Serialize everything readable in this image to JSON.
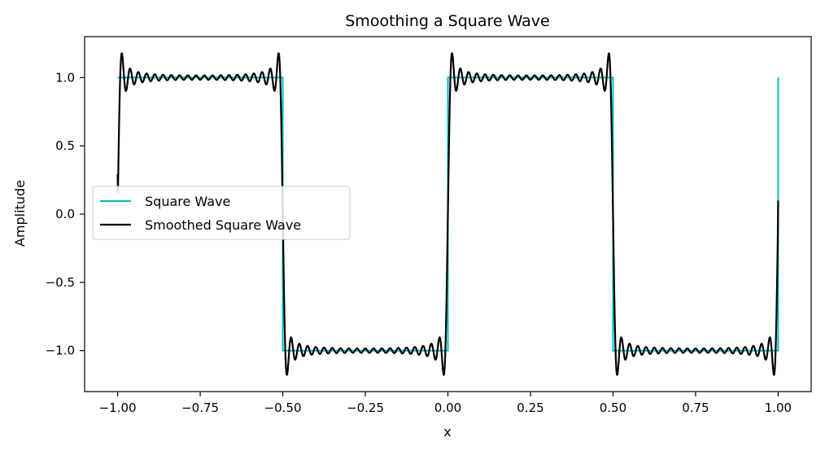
{
  "chart_data": {
    "type": "line",
    "title": "Smoothing a Square Wave",
    "xlabel": "x",
    "ylabel": "Amplitude",
    "xlim": [
      -1.1,
      1.1
    ],
    "ylim": [
      -1.3,
      1.3
    ],
    "x_ticks": [
      -1.0,
      -0.75,
      -0.5,
      -0.25,
      0.0,
      0.25,
      0.5,
      0.75,
      1.0
    ],
    "x_tick_labels": [
      "−1.00",
      "−0.75",
      "−0.50",
      "−0.25",
      "0.00",
      "0.25",
      "0.50",
      "0.75",
      "1.00"
    ],
    "y_ticks": [
      -1.0,
      -0.5,
      0.0,
      0.5,
      1.0
    ],
    "y_tick_labels": [
      "−1.0",
      "−0.5",
      "0.0",
      "0.5",
      "1.0"
    ],
    "grid": false,
    "legend_position": "center-left",
    "x_domain": [
      -1.0,
      1.0
    ],
    "series": [
      {
        "name": "Square Wave",
        "color": "#00bfbf",
        "description": "Square wave of period 1: value 1 on [-1,-0.5), -1 on [-0.5,0), 1 on [0,0.5), -1 on [0.5,1), 1 at x=1",
        "breakpoints": [
          {
            "x": -1.0,
            "y": 1
          },
          {
            "x": -0.5,
            "y": 1
          },
          {
            "x": -0.5,
            "y": -1
          },
          {
            "x": 0.0,
            "y": -1
          },
          {
            "x": 0.0,
            "y": 1
          },
          {
            "x": 0.5,
            "y": 1
          },
          {
            "x": 0.5,
            "y": -1
          },
          {
            "x": 1.0,
            "y": -1
          },
          {
            "x": 1.0,
            "y": 1
          }
        ]
      },
      {
        "name": "Smoothed Square Wave",
        "color": "#000000",
        "description": "Partial Fourier sum of the square wave (odd harmonics 1..39) showing Gibbs ringing",
        "harmonics": 39,
        "period": 1.0,
        "start_value": 0.29,
        "end_value": 0.1
      }
    ]
  }
}
